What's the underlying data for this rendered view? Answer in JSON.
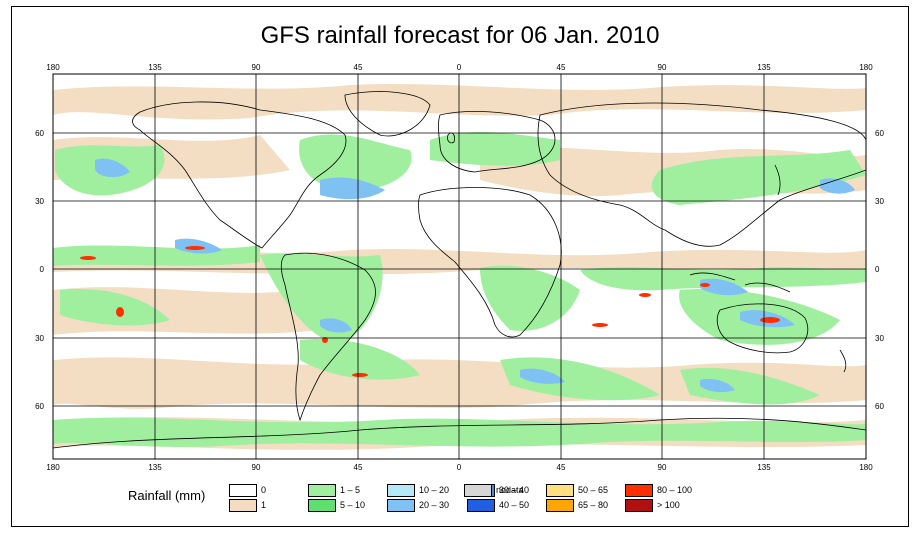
{
  "title": "GFS rainfall forecast for 06 Jan. 2010",
  "lon_ticks": [
    "180",
    "135",
    "90",
    "45",
    "0",
    "45",
    "90",
    "135",
    "180"
  ],
  "lat_ticks_left": [
    "60",
    "30",
    "0",
    "30",
    "60"
  ],
  "lat_ticks_right": [
    "60",
    "30",
    "0",
    "30",
    "60"
  ],
  "legend": {
    "title": "Rainfall (mm)",
    "items": [
      {
        "label": "0",
        "color": "#ffffff"
      },
      {
        "label": "1",
        "color": "#f3dcc0"
      },
      {
        "label": "1 – 5",
        "color": "#9fef9f"
      },
      {
        "label": "5 – 10",
        "color": "#5fdf6f"
      },
      {
        "label": "10 – 20",
        "color": "#b7e8f7"
      },
      {
        "label": "20 – 30",
        "color": "#7fc1f2"
      },
      {
        "label": "30 – 40",
        "color": "#3f8fe8"
      },
      {
        "label": "40 – 50",
        "color": "#1f5fe0"
      },
      {
        "label": "50 – 65",
        "color": "#ffdf7f"
      },
      {
        "label": "65 – 80",
        "color": "#ffa700"
      },
      {
        "label": "80 – 100",
        "color": "#ff2f00"
      },
      {
        "label": "> 100",
        "color": "#b01010"
      },
      {
        "label": "nodata",
        "color": "#d6d6d6"
      }
    ]
  },
  "colors": {
    "ocean": "#ffffff",
    "coast": "#000000",
    "grid": "#000000"
  }
}
